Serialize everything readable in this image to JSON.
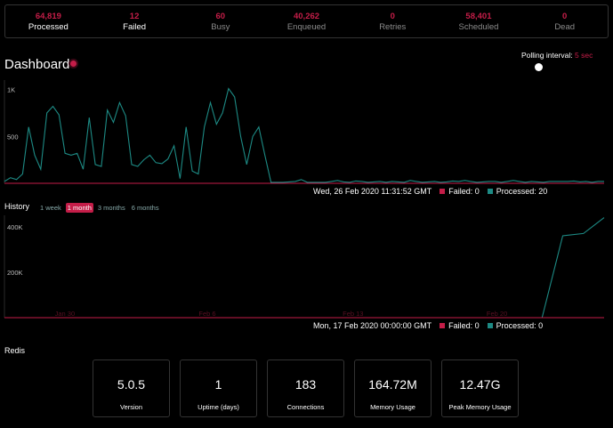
{
  "stats": [
    {
      "value": "64,819",
      "label": "Processed"
    },
    {
      "value": "12",
      "label": "Failed"
    },
    {
      "value": "60",
      "label": "Busy"
    },
    {
      "value": "40,262",
      "label": "Enqueued"
    },
    {
      "value": "0",
      "label": "Retries"
    },
    {
      "value": "58,401",
      "label": "Scheduled"
    },
    {
      "value": "0",
      "label": "Dead"
    }
  ],
  "dashboard": {
    "title": "Dashboard"
  },
  "polling": {
    "label": "Polling interval:",
    "value": "5 sec"
  },
  "realtime": {
    "legend": {
      "timestamp": "Wed, 26 Feb 2020 11:31:52 GMT",
      "failed": "Failed: 0",
      "processed": "Processed: 20"
    }
  },
  "history": {
    "title": "History",
    "tabs": [
      "1 week",
      "1 month",
      "3 months",
      "6 months"
    ],
    "active_tab": "1 month",
    "legend": {
      "timestamp": "Mon, 17 Feb 2020 00:00:00 GMT",
      "failed": "Failed: 0",
      "processed": "Processed: 0"
    }
  },
  "redis": {
    "title": "Redis",
    "items": [
      {
        "value": "5.0.5",
        "label": "Version"
      },
      {
        "value": "1",
        "label": "Uptime (days)"
      },
      {
        "value": "183",
        "label": "Connections"
      },
      {
        "value": "164.72M",
        "label": "Memory Usage"
      },
      {
        "value": "12.47G",
        "label": "Peak Memory Usage"
      }
    ]
  },
  "colors": {
    "failed": "#c41d48",
    "processed": "#1d8a84"
  },
  "chart_data": [
    {
      "type": "line",
      "ylim": [
        0,
        1100
      ],
      "y_ticks": [
        500,
        1000
      ],
      "y_tick_labels": [
        "500",
        "1K"
      ],
      "grid": false,
      "series": [
        {
          "name": "Processed",
          "values": [
            20,
            60,
            40,
            100,
            600,
            300,
            150,
            750,
            820,
            730,
            320,
            300,
            320,
            150,
            700,
            200,
            180,
            780,
            650,
            860,
            720,
            200,
            180,
            250,
            300,
            220,
            210,
            260,
            400,
            50,
            600,
            130,
            100,
            600,
            860,
            630,
            750,
            1010,
            920,
            500,
            200,
            500,
            600,
            300,
            10,
            10,
            10,
            15,
            20,
            40,
            10,
            10,
            10,
            10,
            20,
            30,
            15,
            10,
            25,
            20,
            10,
            15,
            20,
            10,
            20,
            15,
            10,
            30,
            20,
            10,
            15,
            20,
            10,
            15,
            25,
            20,
            30,
            20,
            10,
            15,
            20,
            20,
            10,
            20,
            30,
            20,
            10,
            20,
            15,
            10,
            20,
            20,
            20,
            20,
            25,
            15,
            20,
            10,
            20,
            20
          ]
        },
        {
          "name": "Failed",
          "values": [
            0,
            0,
            0,
            0,
            0,
            0,
            0,
            0,
            0,
            0,
            0,
            0,
            0,
            0,
            0,
            0,
            0,
            0,
            0,
            0,
            0,
            0,
            0,
            0,
            0,
            0,
            0,
            0,
            0,
            0,
            0,
            0,
            0,
            0,
            0,
            0,
            0,
            0,
            0,
            0,
            0,
            0,
            0,
            0,
            0,
            0,
            0,
            0,
            0,
            0,
            0,
            0,
            0,
            0,
            0,
            0,
            0,
            0,
            0,
            0,
            0,
            0,
            0,
            0,
            0,
            0,
            0,
            0,
            0,
            0,
            0,
            0,
            0,
            0,
            0,
            0,
            0,
            0,
            0,
            0,
            0,
            0,
            0,
            0,
            0,
            0,
            0,
            0,
            0,
            0,
            0,
            0,
            0,
            0,
            0,
            0,
            0,
            0,
            0,
            0
          ]
        }
      ]
    },
    {
      "type": "line",
      "ylim": [
        0,
        450000
      ],
      "y_ticks": [
        200000,
        400000
      ],
      "y_tick_labels": [
        "200K",
        "400K"
      ],
      "x_ticks": [
        "Jan 30",
        "Feb 6",
        "Feb 13",
        "Feb 20"
      ],
      "grid": false,
      "series": [
        {
          "name": "Processed",
          "values": [
            0,
            0,
            0,
            0,
            0,
            0,
            0,
            0,
            0,
            0,
            0,
            0,
            0,
            0,
            0,
            0,
            0,
            0,
            0,
            0,
            0,
            0,
            0,
            0,
            0,
            0,
            0,
            360000,
            370000,
            440000
          ]
        },
        {
          "name": "Failed",
          "values": [
            0,
            0,
            0,
            0,
            0,
            0,
            0,
            0,
            0,
            0,
            0,
            0,
            0,
            0,
            0,
            0,
            0,
            0,
            0,
            0,
            0,
            0,
            0,
            0,
            0,
            0,
            0,
            0,
            0,
            0
          ]
        }
      ]
    }
  ]
}
